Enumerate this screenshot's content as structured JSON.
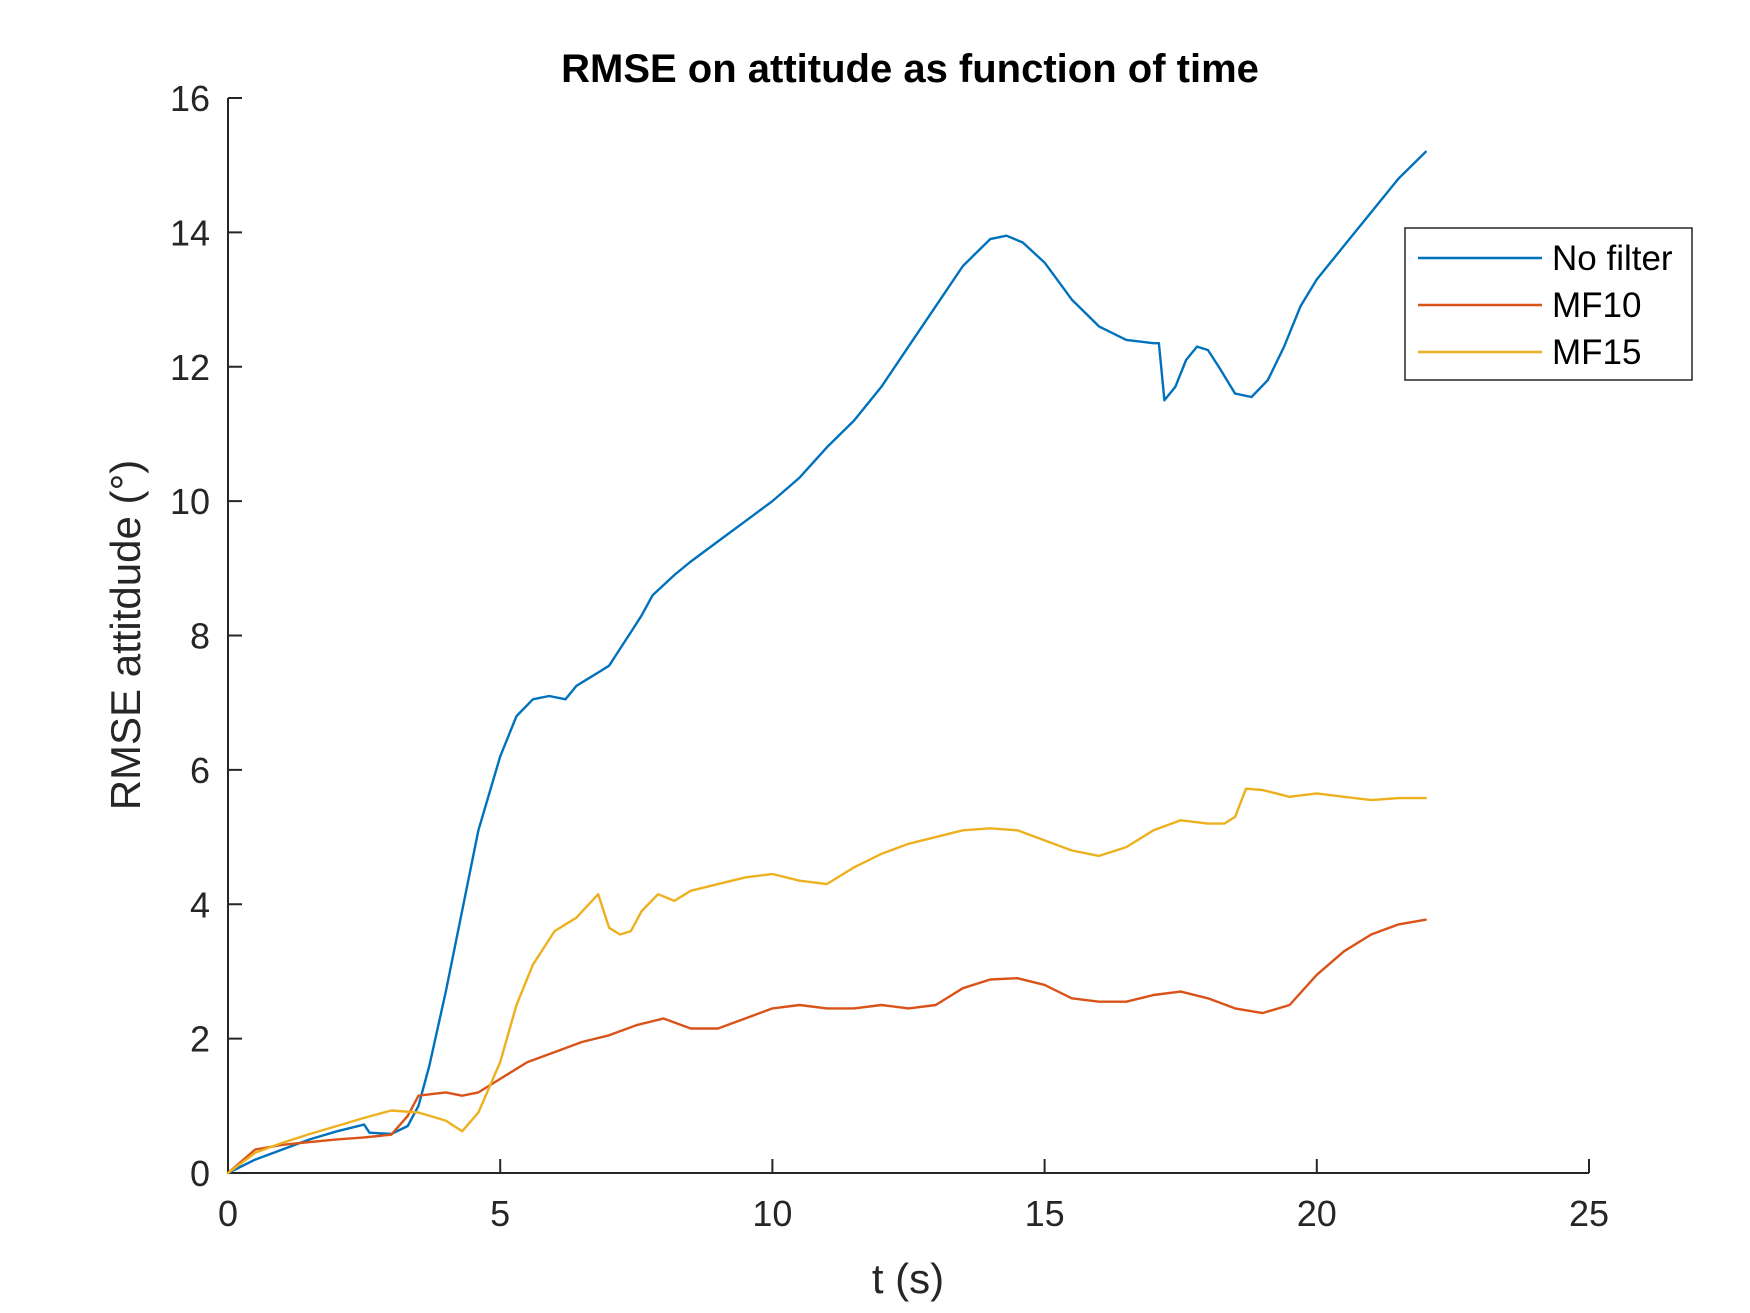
{
  "chart_data": {
    "type": "line",
    "title": "RMSE on attitude as function of time",
    "xlabel": "t (s)",
    "ylabel": "RMSE attitdude (°)",
    "xlim": [
      0,
      25
    ],
    "ylim": [
      0,
      16
    ],
    "xticks": [
      "0",
      "5",
      "10",
      "15",
      "20",
      "25"
    ],
    "yticks": [
      "0",
      "2",
      "4",
      "6",
      "8",
      "10",
      "12",
      "14",
      "16"
    ],
    "grid": false,
    "legend_position": "top-right",
    "series": [
      {
        "name": "No filter",
        "color": "#0072BD",
        "x": [
          0,
          0.5,
          1,
          1.5,
          2,
          2.5,
          2.6,
          3,
          3.3,
          3.5,
          3.7,
          4,
          4.3,
          4.6,
          5,
          5.3,
          5.6,
          5.9,
          6.2,
          6.4,
          6.6,
          6.8,
          7,
          7.2,
          7.4,
          7.6,
          7.8,
          8,
          8.2,
          8.5,
          9,
          9.5,
          10,
          10.5,
          11,
          11.5,
          12,
          12.5,
          13,
          13.5,
          14,
          14.3,
          14.6,
          15,
          15.5,
          16,
          16.5,
          17,
          17.1,
          17.2,
          17.4,
          17.6,
          17.8,
          18,
          18.2,
          18.5,
          18.8,
          19.1,
          19.4,
          19.7,
          20,
          20.5,
          21,
          21.5,
          22
        ],
        "y": [
          0,
          0.2,
          0.35,
          0.5,
          0.62,
          0.72,
          0.6,
          0.58,
          0.7,
          1.0,
          1.6,
          2.7,
          3.9,
          5.1,
          6.2,
          6.8,
          7.05,
          7.1,
          7.05,
          7.25,
          7.35,
          7.45,
          7.55,
          7.8,
          8.05,
          8.3,
          8.6,
          8.75,
          8.9,
          9.1,
          9.4,
          9.7,
          10.0,
          10.35,
          10.8,
          11.2,
          11.7,
          12.3,
          12.9,
          13.5,
          13.9,
          13.95,
          13.85,
          13.55,
          13.0,
          12.6,
          12.4,
          12.35,
          12.35,
          11.5,
          11.7,
          12.1,
          12.3,
          12.25,
          12.0,
          11.6,
          11.55,
          11.8,
          12.3,
          12.9,
          13.3,
          13.8,
          14.3,
          14.8,
          15.2
        ]
      },
      {
        "name": "MF10",
        "color": "#D95319",
        "x": [
          0,
          0.5,
          1,
          1.5,
          2,
          2.5,
          3,
          3.3,
          3.5,
          3.8,
          4,
          4.3,
          4.6,
          5,
          5.5,
          6,
          6.5,
          7,
          7.5,
          8,
          8.5,
          9,
          9.5,
          10,
          10.5,
          11,
          11.5,
          12,
          12.5,
          13,
          13.5,
          14,
          14.5,
          15,
          15.5,
          16,
          16.5,
          17,
          17.5,
          18,
          18.5,
          19,
          19.5,
          20,
          20.5,
          21,
          21.5,
          22
        ],
        "y": [
          0,
          0.35,
          0.42,
          0.46,
          0.5,
          0.53,
          0.57,
          0.85,
          1.15,
          1.18,
          1.2,
          1.15,
          1.2,
          1.4,
          1.65,
          1.8,
          1.95,
          2.05,
          2.2,
          2.3,
          2.15,
          2.15,
          2.3,
          2.45,
          2.5,
          2.45,
          2.45,
          2.5,
          2.45,
          2.5,
          2.75,
          2.88,
          2.9,
          2.8,
          2.6,
          2.55,
          2.55,
          2.65,
          2.7,
          2.6,
          2.45,
          2.38,
          2.5,
          2.95,
          3.3,
          3.55,
          3.7,
          3.77
        ]
      },
      {
        "name": "MF15",
        "color": "#EDB120",
        "x": [
          0,
          0.5,
          1,
          1.5,
          2,
          2.5,
          3,
          3.5,
          4,
          4.3,
          4.6,
          5,
          5.3,
          5.6,
          6,
          6.4,
          6.8,
          7,
          7.2,
          7.4,
          7.6,
          7.9,
          8.2,
          8.5,
          9,
          9.5,
          10,
          10.5,
          11,
          11.5,
          12,
          12.5,
          13,
          13.5,
          14,
          14.5,
          15,
          15.5,
          16,
          16.5,
          17,
          17.5,
          18,
          18.3,
          18.5,
          18.7,
          19,
          19.5,
          20,
          20.5,
          21,
          21.5,
          22
        ],
        "y": [
          0,
          0.3,
          0.45,
          0.58,
          0.7,
          0.82,
          0.93,
          0.9,
          0.78,
          0.62,
          0.9,
          1.65,
          2.5,
          3.1,
          3.6,
          3.8,
          4.15,
          3.65,
          3.55,
          3.6,
          3.9,
          4.15,
          4.05,
          4.2,
          4.3,
          4.4,
          4.45,
          4.35,
          4.3,
          4.55,
          4.75,
          4.9,
          5.0,
          5.1,
          5.13,
          5.1,
          4.95,
          4.8,
          4.72,
          4.85,
          5.1,
          5.25,
          5.2,
          5.2,
          5.3,
          5.72,
          5.7,
          5.6,
          5.65,
          5.6,
          5.55,
          5.58,
          5.58
        ]
      }
    ]
  }
}
